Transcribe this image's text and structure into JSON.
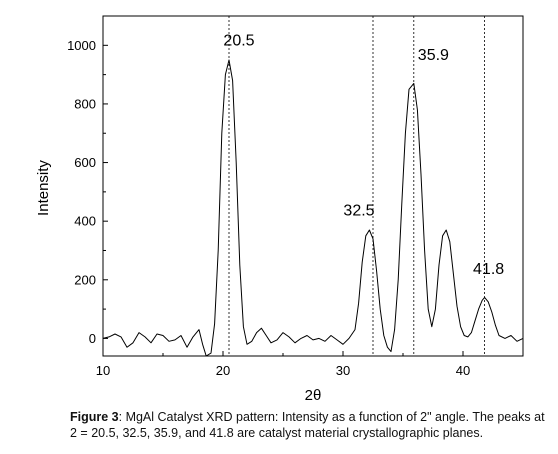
{
  "chart_data": {
    "type": "line",
    "xlabel": "2θ",
    "ylabel": "Intensity",
    "xlim": [
      10,
      45
    ],
    "ylim": [
      -60,
      1100
    ],
    "xticks": [
      10,
      20,
      30,
      40
    ],
    "yticks": [
      0,
      200,
      400,
      600,
      800,
      1000
    ],
    "grid": false,
    "series": [
      {
        "x": [
          10,
          10.5,
          11,
          11.5,
          12,
          12.5,
          13,
          13.5,
          14,
          14.5,
          15,
          15.5,
          16,
          16.5,
          17,
          17.5,
          18,
          18.3,
          18.6,
          19,
          19.3,
          19.6,
          19.9,
          20.2,
          20.5,
          20.8,
          21.1,
          21.4,
          21.7,
          22,
          22.4,
          22.8,
          23.2,
          23.6,
          24,
          24.5,
          25,
          25.5,
          26,
          26.5,
          27,
          27.5,
          28,
          28.5,
          29,
          29.5,
          30,
          30.5,
          31,
          31.3,
          31.6,
          31.9,
          32.2,
          32.5,
          32.8,
          33.1,
          33.4,
          33.7,
          34,
          34.3,
          34.6,
          34.9,
          35.2,
          35.5,
          35.9,
          36.2,
          36.5,
          36.8,
          37.1,
          37.4,
          37.7,
          38,
          38.3,
          38.6,
          38.9,
          39.2,
          39.5,
          39.8,
          40.1,
          40.4,
          40.7,
          41,
          41.3,
          41.6,
          41.8,
          42.1,
          42.4,
          42.7,
          43,
          43.5,
          44,
          44.5,
          45
        ],
        "y": [
          0,
          5,
          15,
          5,
          -30,
          -15,
          20,
          5,
          -15,
          15,
          10,
          -10,
          -5,
          10,
          -30,
          5,
          30,
          -20,
          -60,
          -50,
          50,
          300,
          700,
          900,
          950,
          880,
          600,
          250,
          40,
          -20,
          -10,
          20,
          35,
          10,
          -15,
          -5,
          20,
          5,
          -15,
          0,
          10,
          -5,
          0,
          -10,
          10,
          -5,
          -20,
          0,
          30,
          120,
          260,
          350,
          370,
          340,
          230,
          100,
          10,
          -30,
          -45,
          30,
          200,
          460,
          700,
          850,
          870,
          780,
          560,
          300,
          100,
          40,
          100,
          250,
          350,
          370,
          330,
          220,
          110,
          40,
          10,
          5,
          20,
          60,
          100,
          130,
          140,
          125,
          90,
          45,
          10,
          0,
          10,
          -10,
          0
        ]
      }
    ],
    "annotations": [
      {
        "label": "20.5",
        "x": 20.5
      },
      {
        "label": "32.5",
        "x": 32.5
      },
      {
        "label": "35.9",
        "x": 35.9
      },
      {
        "label": "41.8",
        "x": 41.8
      }
    ]
  },
  "caption": {
    "prefix": "Figure 3",
    "text": ": MgAl Catalyst XRD pattern: Intensity as a function of 2\" angle. The peaks at 2 = 20.5, 32.5, 35.9, and 41.8 are catalyst material crystallographic planes."
  },
  "colors": {
    "line": "#000000",
    "axis": "#000000",
    "background": "#ffffff"
  }
}
